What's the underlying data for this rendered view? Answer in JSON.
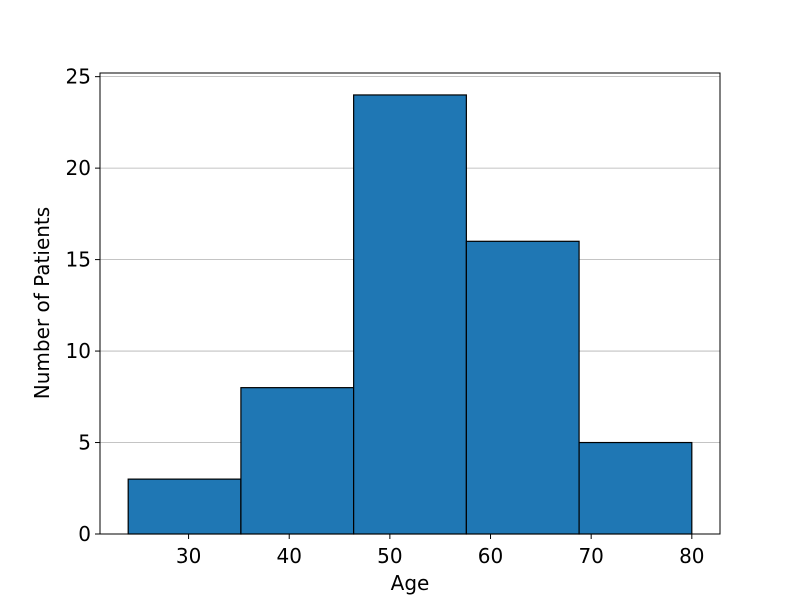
{
  "chart_data": {
    "type": "histogram",
    "xlabel": "Age",
    "ylabel": "Number of Patients",
    "bins": [
      24,
      35.2,
      46.4,
      57.6,
      68.8,
      80
    ],
    "values": [
      3,
      8,
      24,
      16,
      5
    ],
    "color": "#1f77b4",
    "edgecolor": "#000000",
    "xlim": [
      21.2,
      82.8
    ],
    "xticks": [
      30,
      40,
      50,
      60,
      70,
      80
    ],
    "ylim": [
      0,
      25.2
    ],
    "yticks": [
      0,
      5,
      10,
      15,
      20,
      25
    ],
    "grid": "y"
  }
}
